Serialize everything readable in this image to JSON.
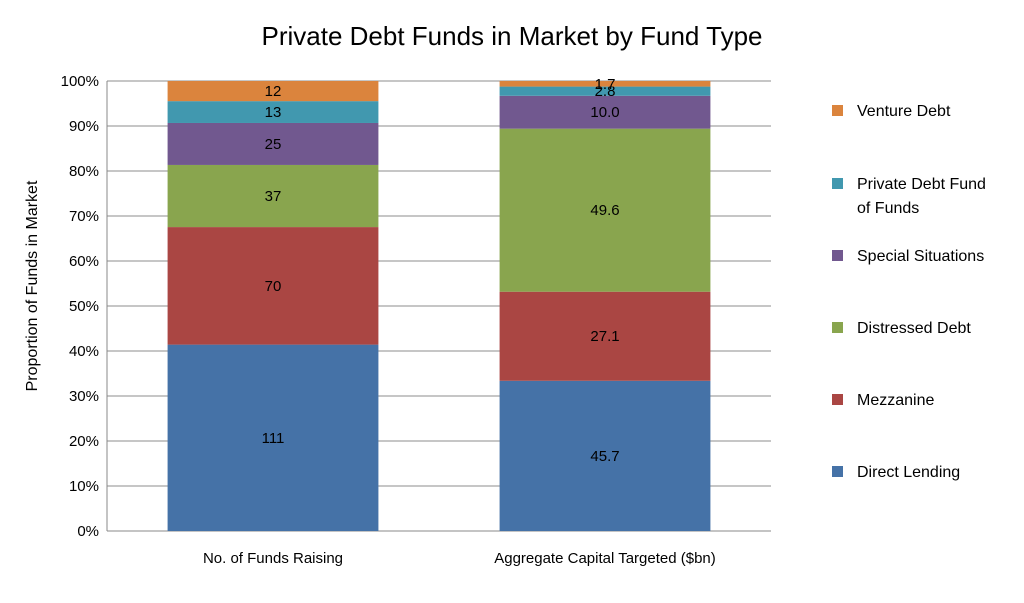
{
  "chart_data": {
    "type": "bar",
    "stacked": "percent",
    "title": "Private Debt Funds in Market by Fund Type",
    "ylabel": "Proportion of Funds in Market",
    "xlabel": "",
    "ylim": [
      0,
      100
    ],
    "yticks": [
      "0%",
      "10%",
      "20%",
      "30%",
      "40%",
      "50%",
      "60%",
      "70%",
      "80%",
      "90%",
      "100%"
    ],
    "grid": true,
    "legend_position": "right",
    "categories": [
      "No. of Funds Raising",
      "Aggregate Capital Targeted ($bn)"
    ],
    "series": [
      {
        "name": "Direct Lending",
        "color": "#4572a7",
        "values": [
          111,
          45.7
        ],
        "labels": [
          "111",
          "45.7"
        ]
      },
      {
        "name": "Mezzanine",
        "color": "#aa4643",
        "values": [
          70,
          27.1
        ],
        "labels": [
          "70",
          "27.1"
        ]
      },
      {
        "name": "Distressed Debt",
        "color": "#89a54e",
        "values": [
          37,
          49.6
        ],
        "labels": [
          "37",
          "49.6"
        ]
      },
      {
        "name": "Special Situations",
        "color": "#71588f",
        "values": [
          25,
          10.0
        ],
        "labels": [
          "25",
          "10.0"
        ]
      },
      {
        "name": "Private Debt Fund of Funds",
        "color": "#4198af",
        "values": [
          13,
          2.8
        ],
        "labels": [
          "13",
          "2.8"
        ]
      },
      {
        "name": "Venture Debt",
        "color": "#db843d",
        "values": [
          12,
          1.7
        ],
        "labels": [
          "12",
          "1.7"
        ]
      }
    ]
  }
}
